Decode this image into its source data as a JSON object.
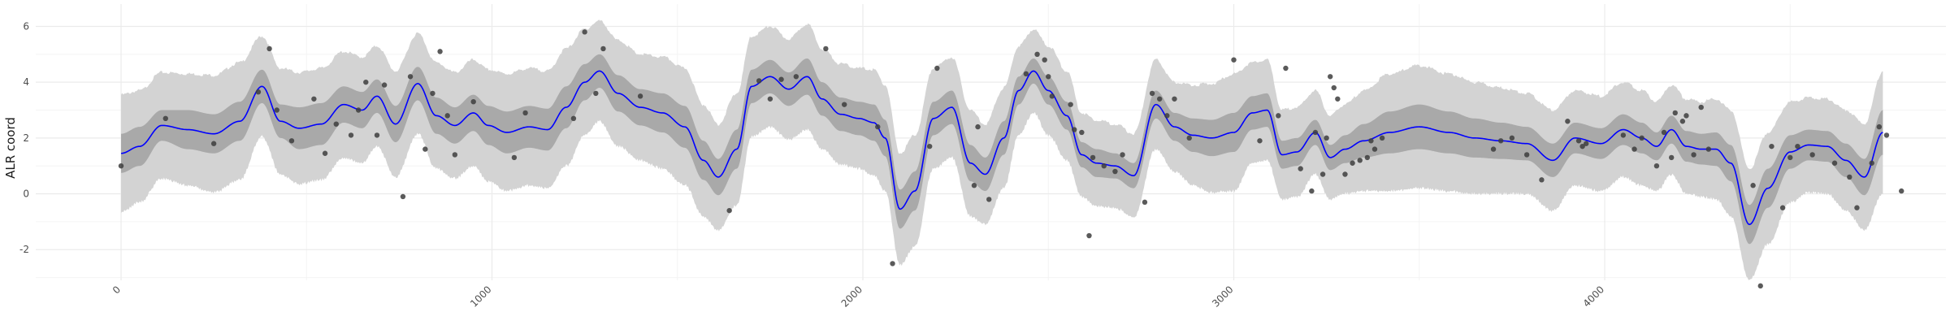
{
  "chart_data": {
    "type": "line",
    "title": "",
    "xlabel": "",
    "ylabel": "ALR coord",
    "xlim": [
      -230,
      4920
    ],
    "ylim": [
      -3.1,
      6.8
    ],
    "x_ticks": [
      0,
      1000,
      2000,
      3000,
      4000
    ],
    "x_tick_labels": [
      "0",
      "1000",
      "2000",
      "3000",
      "4000"
    ],
    "y_ticks": [
      -2,
      0,
      2,
      4,
      6
    ],
    "y_tick_labels": [
      "-2",
      "0",
      "2",
      "4",
      "6"
    ],
    "grid": true,
    "colors": {
      "mean_line": "#0000ff",
      "inner_band": "#a9a9a9",
      "outer_band": "#d3d3d3",
      "points": "#3d3d3d",
      "grid_major": "#ebebeb",
      "grid_minor": "#f4f4f4"
    },
    "mean_curve": {
      "x": [
        0,
        50,
        110,
        180,
        250,
        320,
        380,
        430,
        480,
        540,
        600,
        650,
        690,
        740,
        800,
        850,
        900,
        950,
        990,
        1040,
        1100,
        1150,
        1200,
        1250,
        1290,
        1340,
        1400,
        1460,
        1520,
        1570,
        1610,
        1660,
        1700,
        1750,
        1800,
        1850,
        1890,
        1940,
        1990,
        2030,
        2060,
        2100,
        2140,
        2190,
        2240,
        2290,
        2330,
        2380,
        2420,
        2460,
        2500,
        2550,
        2590,
        2630,
        2680,
        2730,
        2790,
        2840,
        2890,
        2940,
        3000,
        3050,
        3090,
        3130,
        3170,
        3220,
        3260,
        3300,
        3350,
        3420,
        3500,
        3580,
        3650,
        3720,
        3790,
        3860,
        3920,
        3990,
        4050,
        4100,
        4140,
        4180,
        4220,
        4260,
        4300,
        4340,
        4390,
        4440,
        4500,
        4550,
        4600,
        4650,
        4700,
        4750
      ],
      "y": [
        1.45,
        1.7,
        2.45,
        2.3,
        2.15,
        2.6,
        3.85,
        2.6,
        2.35,
        2.5,
        3.2,
        3.0,
        3.5,
        2.5,
        3.95,
        2.8,
        2.45,
        2.9,
        2.45,
        2.2,
        2.4,
        2.3,
        3.1,
        4.0,
        4.4,
        3.6,
        3.1,
        2.9,
        2.4,
        1.2,
        0.6,
        1.6,
        3.85,
        4.2,
        3.75,
        4.2,
        3.4,
        2.85,
        2.7,
        2.55,
        2.0,
        -0.55,
        0.1,
        2.7,
        3.1,
        1.1,
        0.7,
        2.0,
        3.7,
        4.4,
        3.7,
        2.8,
        1.4,
        1.1,
        1.0,
        0.65,
        3.2,
        2.4,
        2.1,
        2.0,
        2.2,
        2.9,
        3.0,
        1.4,
        1.5,
        2.2,
        1.3,
        1.6,
        1.9,
        2.2,
        2.4,
        2.2,
        2.0,
        1.9,
        1.8,
        1.2,
        2.0,
        1.8,
        2.3,
        2.0,
        1.7,
        2.3,
        1.7,
        1.6,
        1.6,
        1.1,
        -1.1,
        0.2,
        1.5,
        1.75,
        1.7,
        1.2,
        0.6,
        2.2
      ],
      "inner_band_halfwidth": [
        0.7,
        0.7,
        0.55,
        0.7,
        0.7,
        0.7,
        0.6,
        0.6,
        0.75,
        0.75,
        0.65,
        0.65,
        0.6,
        0.65,
        0.6,
        0.65,
        0.65,
        0.65,
        0.7,
        0.75,
        0.75,
        0.75,
        0.75,
        0.65,
        0.6,
        0.65,
        0.65,
        0.7,
        0.75,
        0.7,
        0.65,
        0.7,
        0.6,
        0.6,
        0.6,
        0.65,
        0.6,
        0.6,
        0.6,
        0.65,
        0.65,
        0.7,
        0.7,
        0.6,
        0.6,
        0.65,
        0.6,
        0.6,
        0.5,
        0.45,
        0.5,
        0.5,
        0.45,
        0.5,
        0.45,
        0.45,
        0.5,
        0.5,
        0.6,
        0.65,
        0.7,
        0.6,
        0.6,
        0.5,
        0.5,
        0.45,
        0.45,
        0.5,
        0.6,
        0.75,
        0.8,
        0.75,
        0.7,
        0.65,
        0.6,
        0.6,
        0.55,
        0.55,
        0.55,
        0.55,
        0.5,
        0.5,
        0.55,
        0.55,
        0.6,
        0.65,
        0.7,
        0.7,
        0.6,
        0.55,
        0.55,
        0.6,
        0.65,
        0.8
      ],
      "outer_band_halfwidth": [
        2.1,
        2.0,
        1.9,
        2.0,
        2.1,
        2.1,
        1.8,
        1.9,
        2.0,
        2.0,
        1.9,
        1.9,
        1.8,
        1.9,
        1.8,
        1.9,
        1.9,
        1.9,
        2.0,
        2.1,
        2.1,
        2.1,
        2.1,
        1.9,
        1.8,
        1.9,
        1.9,
        2.0,
        2.1,
        2.0,
        1.9,
        2.0,
        1.8,
        1.8,
        1.8,
        1.9,
        1.8,
        1.8,
        1.8,
        1.9,
        1.9,
        2.0,
        2.0,
        1.8,
        1.8,
        1.9,
        1.8,
        1.8,
        1.6,
        1.5,
        1.6,
        1.6,
        1.5,
        1.55,
        1.5,
        1.5,
        1.6,
        1.6,
        1.8,
        1.95,
        2.1,
        1.8,
        1.8,
        1.6,
        1.6,
        1.5,
        1.5,
        1.6,
        1.8,
        2.1,
        2.2,
        2.1,
        2.0,
        1.9,
        1.8,
        1.8,
        1.7,
        1.7,
        1.7,
        1.7,
        1.6,
        1.6,
        1.7,
        1.7,
        1.8,
        1.9,
        2.0,
        2.0,
        1.8,
        1.7,
        1.7,
        1.8,
        1.9,
        2.2
      ]
    },
    "points": {
      "x": [
        0,
        120,
        250,
        370,
        400,
        420,
        460,
        520,
        550,
        580,
        620,
        640,
        660,
        690,
        710,
        760,
        780,
        820,
        840,
        860,
        880,
        900,
        950,
        1060,
        1090,
        1220,
        1250,
        1280,
        1300,
        1400,
        1640,
        1720,
        1750,
        1780,
        1820,
        1900,
        1950,
        2040,
        2080,
        2180,
        2200,
        2300,
        2310,
        2340,
        2440,
        2470,
        2490,
        2500,
        2510,
        2560,
        2570,
        2590,
        2610,
        2620,
        2650,
        2680,
        2700,
        2760,
        2780,
        2800,
        2820,
        2840,
        2880,
        3000,
        3070,
        3120,
        3140,
        3180,
        3210,
        3220,
        3240,
        3250,
        3260,
        3270,
        3280,
        3300,
        3320,
        3340,
        3360,
        3370,
        3380,
        3400,
        3700,
        3720,
        3750,
        3790,
        3830,
        3900,
        3930,
        3940,
        3950,
        4050,
        4080,
        4100,
        4140,
        4160,
        4180,
        4190,
        4210,
        4220,
        4240,
        4260,
        4280,
        4400,
        4420,
        4450,
        4480,
        4500,
        4520,
        4560,
        4620,
        4660,
        4680,
        4720,
        4740,
        4760,
        4800
      ],
      "y": [
        1.0,
        2.7,
        1.8,
        3.65,
        5.2,
        3.0,
        1.9,
        3.4,
        1.45,
        2.5,
        2.1,
        3.0,
        4.0,
        2.1,
        3.9,
        -0.1,
        4.2,
        1.6,
        3.6,
        5.1,
        2.8,
        1.4,
        3.3,
        1.3,
        2.9,
        2.7,
        5.8,
        3.6,
        5.2,
        3.5,
        -0.6,
        4.05,
        3.4,
        4.1,
        4.2,
        5.2,
        3.2,
        2.4,
        -2.5,
        1.7,
        4.5,
        0.3,
        2.4,
        -0.2,
        4.3,
        5.0,
        4.8,
        4.2,
        3.5,
        3.2,
        2.3,
        2.2,
        -1.5,
        1.3,
        1.0,
        0.8,
        1.4,
        -0.3,
        3.6,
        3.4,
        2.8,
        3.4,
        2.0,
        4.8,
        1.9,
        2.8,
        4.5,
        0.9,
        0.1,
        2.2,
        0.7,
        2.0,
        4.2,
        3.8,
        3.4,
        0.7,
        1.1,
        1.2,
        1.3,
        1.9,
        1.6,
        2.0,
        1.6,
        1.9,
        2.0,
        1.4,
        0.5,
        2.6,
        1.9,
        1.7,
        1.8,
        2.1,
        1.6,
        2.0,
        1.0,
        2.2,
        1.3,
        2.9,
        2.6,
        2.8,
        1.4,
        3.1,
        1.6,
        0.3,
        -3.3,
        1.7,
        -0.5,
        1.3,
        1.7,
        1.4,
        1.1,
        0.6,
        -0.5,
        1.1,
        2.4,
        2.1,
        0.1
      ]
    }
  }
}
